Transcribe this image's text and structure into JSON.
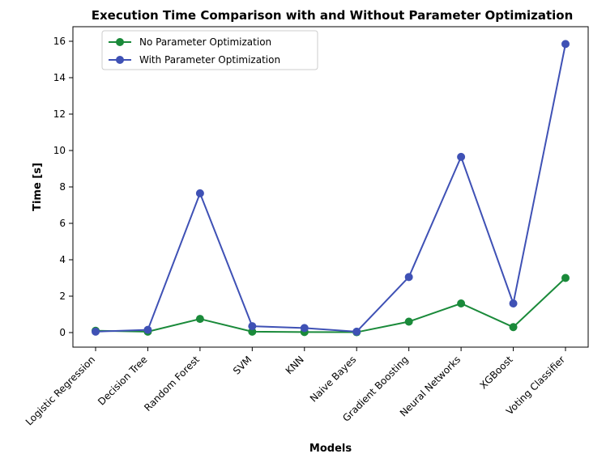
{
  "chart_data": {
    "type": "line",
    "title": "Execution Time Comparison with and Without Parameter Optimization",
    "xlabel": "Models",
    "ylabel": "Time [s]",
    "categories": [
      "Logistic Regression",
      "Decision Tree",
      "Random Forest",
      "SVM",
      "KNN",
      "Naive Bayes",
      "Gradient Boosting",
      "Neural Networks",
      "XGBoost",
      "Voting Classifier"
    ],
    "ylim": [
      -0.8,
      16.8
    ],
    "yticks": [
      0,
      2,
      4,
      6,
      8,
      10,
      12,
      14,
      16
    ],
    "grid": false,
    "legend_position": "top-left",
    "series": [
      {
        "name": "No Parameter Optimization",
        "color": "#1a8a3a",
        "values": [
          0.1,
          0.05,
          0.75,
          0.05,
          0.03,
          0.02,
          0.6,
          1.6,
          0.3,
          3.0
        ]
      },
      {
        "name": "With Parameter Optimization",
        "color": "#3f51b5",
        "values": [
          0.05,
          0.15,
          7.65,
          0.35,
          0.25,
          0.05,
          3.05,
          9.65,
          1.6,
          15.85
        ]
      }
    ]
  }
}
